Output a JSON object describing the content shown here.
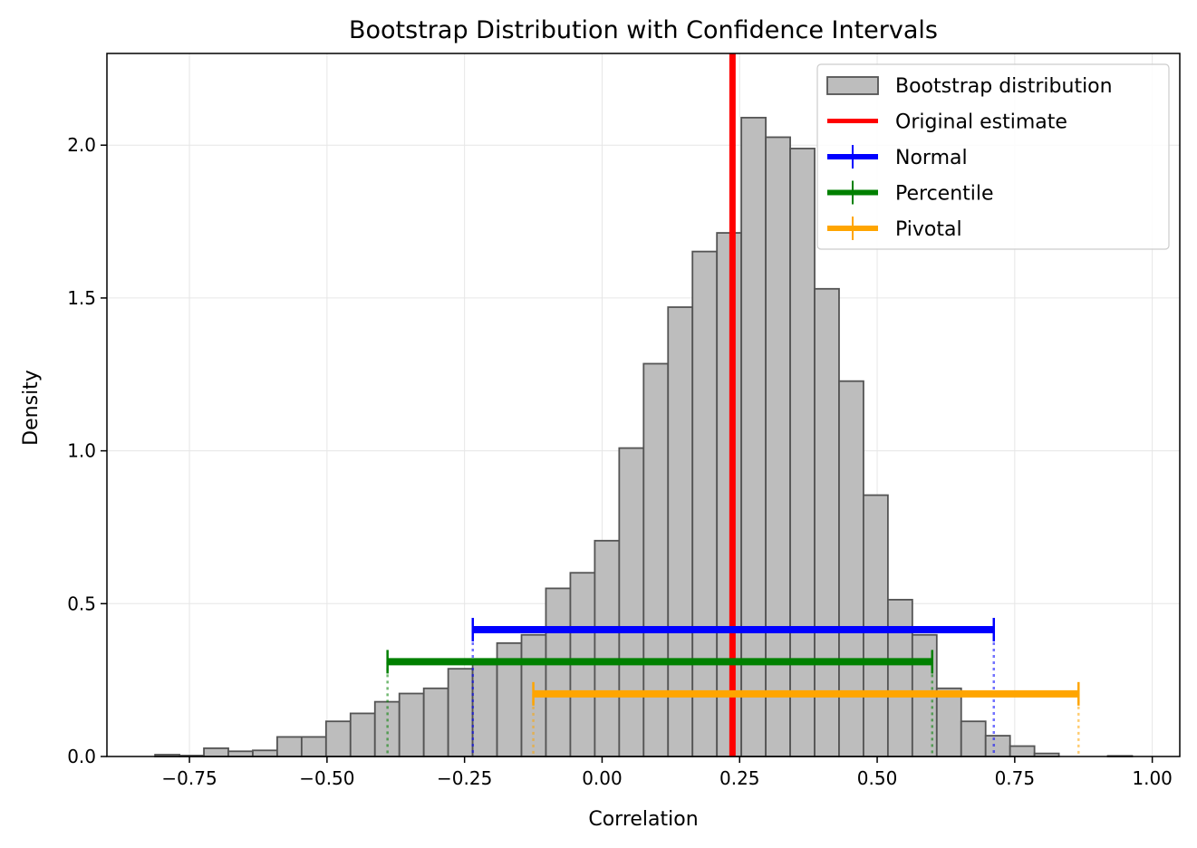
{
  "chart_data": {
    "type": "bar",
    "title": "Bootstrap Distribution with Confidence Intervals",
    "xlabel": "Correlation",
    "ylabel": "Density",
    "xlim": [
      -0.9,
      1.05
    ],
    "ylim": [
      0,
      2.3
    ],
    "xticks": [
      -0.75,
      -0.5,
      -0.25,
      0.0,
      0.25,
      0.5,
      0.75,
      1.0
    ],
    "xtick_labels": [
      "−0.75",
      "−0.50",
      "−0.25",
      "0.00",
      "0.25",
      "0.50",
      "0.75",
      "1.00"
    ],
    "yticks": [
      0.0,
      0.5,
      1.0,
      1.5,
      2.0
    ],
    "ytick_labels": [
      "0.0",
      "0.5",
      "1.0",
      "1.5",
      "2.0"
    ],
    "grid": true,
    "legend_position": "top-right",
    "histogram": {
      "name": "Bootstrap distribution",
      "bin_width": 0.0444,
      "bins": [
        {
          "x0": -0.8125,
          "density": 0.006
        },
        {
          "x0": -0.7681,
          "density": 0.003
        },
        {
          "x0": -0.7237,
          "density": 0.027
        },
        {
          "x0": -0.6793,
          "density": 0.017
        },
        {
          "x0": -0.6349,
          "density": 0.02
        },
        {
          "x0": -0.5905,
          "density": 0.064
        },
        {
          "x0": -0.5461,
          "density": 0.064
        },
        {
          "x0": -0.5017,
          "density": 0.115
        },
        {
          "x0": -0.4573,
          "density": 0.141
        },
        {
          "x0": -0.4129,
          "density": 0.179
        },
        {
          "x0": -0.3685,
          "density": 0.206
        },
        {
          "x0": -0.3241,
          "density": 0.223
        },
        {
          "x0": -0.2797,
          "density": 0.287
        },
        {
          "x0": -0.2353,
          "density": 0.301
        },
        {
          "x0": -0.1909,
          "density": 0.371
        },
        {
          "x0": -0.1465,
          "density": 0.398
        },
        {
          "x0": -0.1021,
          "density": 0.55
        },
        {
          "x0": -0.0577,
          "density": 0.601
        },
        {
          "x0": -0.0133,
          "density": 0.706
        },
        {
          "x0": 0.0311,
          "density": 1.009
        },
        {
          "x0": 0.0755,
          "density": 1.285
        },
        {
          "x0": 0.1199,
          "density": 1.47
        },
        {
          "x0": 0.1643,
          "density": 1.652
        },
        {
          "x0": 0.2087,
          "density": 1.713
        },
        {
          "x0": 0.2531,
          "density": 2.09
        },
        {
          "x0": 0.2975,
          "density": 2.026
        },
        {
          "x0": 0.3419,
          "density": 1.989
        },
        {
          "x0": 0.3863,
          "density": 1.53
        },
        {
          "x0": 0.4307,
          "density": 1.228
        },
        {
          "x0": 0.4751,
          "density": 0.855
        },
        {
          "x0": 0.5195,
          "density": 0.513
        },
        {
          "x0": 0.5639,
          "density": 0.398
        },
        {
          "x0": 0.6083,
          "density": 0.223
        },
        {
          "x0": 0.6527,
          "density": 0.115
        },
        {
          "x0": 0.6971,
          "density": 0.068
        },
        {
          "x0": 0.7415,
          "density": 0.034
        },
        {
          "x0": 0.7859,
          "density": 0.01
        },
        {
          "x0": 0.8303,
          "density": 0.0
        },
        {
          "x0": 0.8747,
          "density": 0.0
        },
        {
          "x0": 0.9191,
          "density": 0.002
        }
      ]
    },
    "original_estimate": {
      "name": "Original estimate",
      "x": 0.237,
      "color": "#ff0000"
    },
    "intervals": [
      {
        "name": "Normal",
        "lower": -0.235,
        "upper": 0.712,
        "y": 0.415,
        "color": "#0000ff"
      },
      {
        "name": "Percentile",
        "lower": -0.39,
        "upper": 0.6,
        "y": 0.31,
        "color": "#008000"
      },
      {
        "name": "Pivotal",
        "lower": -0.125,
        "upper": 0.866,
        "y": 0.205,
        "color": "#ffa500"
      }
    ],
    "colors": {
      "bar_fill": "#bdbdbd",
      "bar_edge": "#545454",
      "grid": "#e6e6e6",
      "legend_border": "#cccccc"
    }
  }
}
